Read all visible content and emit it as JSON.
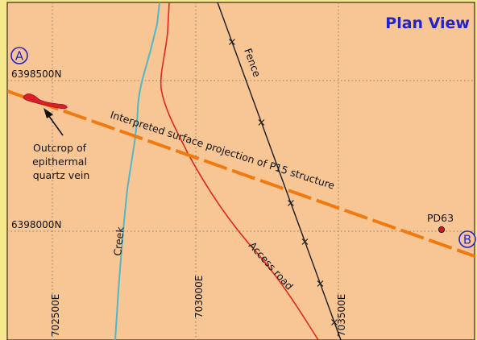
{
  "map": {
    "title": "Plan View",
    "colors": {
      "frame": "#f5e88a",
      "ground": "#f8c694",
      "grid": "#8a7a68",
      "title": "#2323c8",
      "creek": "#4fb7c8",
      "road": "#e0281e",
      "fence": "#1a1a1a",
      "structure": "#f07a10",
      "vein": "#dc1e28",
      "drillhole": "#c81e1e",
      "section_marker": "#2323c8"
    },
    "grid": {
      "northings": [
        "6398500N",
        "6398000N"
      ],
      "eastings": [
        "702500E",
        "703000E",
        "703500E"
      ]
    },
    "section_markers": {
      "start": "A",
      "end": "B"
    },
    "labels": {
      "outcrop_lines": [
        "Outcrop of",
        "epithermal",
        "quartz vein"
      ],
      "structure": "Interpreted surface projection of P15 structure",
      "fence": "Fence",
      "creek": "Creek",
      "access_road": "Access road",
      "drillhole": "PD63"
    },
    "icons": {
      "fence_ticks": "x-mark-icon",
      "drillhole": "drillhole-dot-icon",
      "outcrop_arrow": "arrow-icon"
    }
  }
}
